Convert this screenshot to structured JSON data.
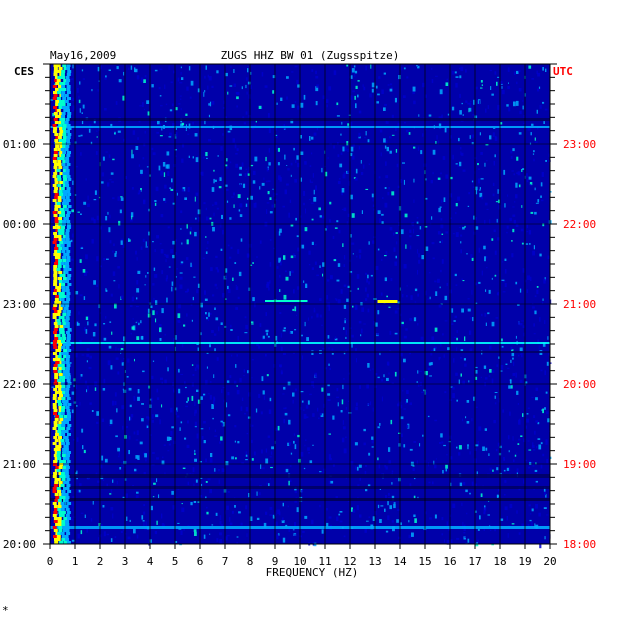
{
  "chart_data": {
    "type": "heatmap",
    "title": "ZUGS HHZ BW 01 (Zugsspitze)",
    "date": "May16,2009",
    "xlabel": "FREQUENCY (HZ)",
    "left_axis_label": "CES",
    "right_axis_label": "UTC",
    "xlim": [
      0,
      20
    ],
    "x_ticks": [
      "0",
      "1",
      "2",
      "3",
      "4",
      "5",
      "6",
      "7",
      "8",
      "9",
      "10",
      "11",
      "12",
      "13",
      "14",
      "15",
      "16",
      "17",
      "18",
      "19",
      "20"
    ],
    "time_range_ces": [
      "20:00",
      "02:00"
    ],
    "left_ticks": [
      "01:00",
      "00:00",
      "23:00",
      "22:00",
      "21:00",
      "20:00"
    ],
    "right_ticks": [
      "23:00",
      "22:00",
      "21:00",
      "20:00",
      "19:00",
      "18:00"
    ],
    "grid": true,
    "colors": {
      "background": "#0000aa",
      "low": "#0000cc",
      "mid": "#00aaff",
      "high_a": "#00ffcc",
      "high_b": "#ffff00",
      "peak": "#ff0000",
      "utc_label": "#ff0000",
      "ces_label": "#000000"
    }
  },
  "footer": {
    "mark": "*"
  }
}
